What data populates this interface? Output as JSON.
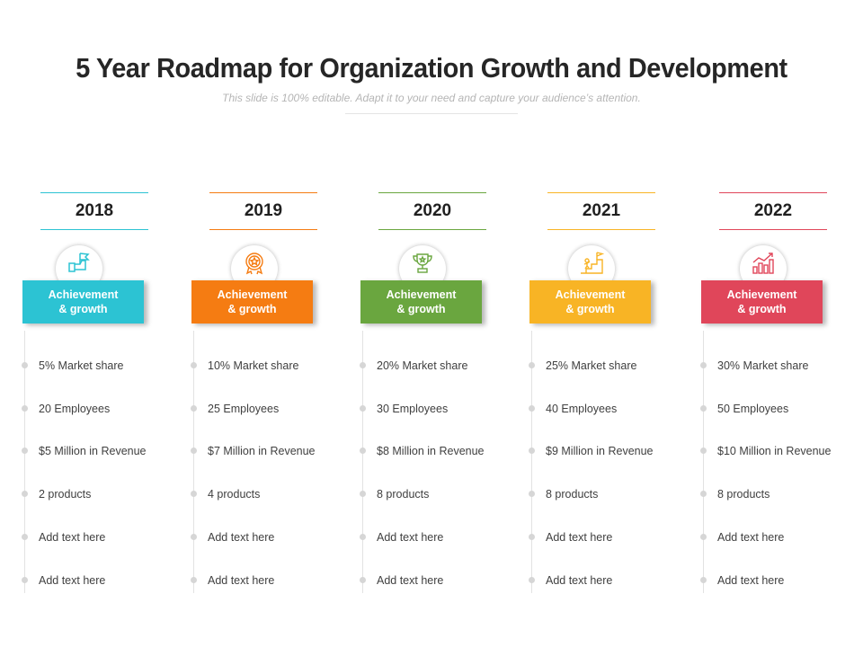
{
  "header": {
    "title": "5 Year Roadmap for Organization Growth and Development",
    "subtitle": "This slide is 100% editable. Adapt it to your need and capture your audience’s attention."
  },
  "columns": [
    {
      "year": "2018",
      "label": "Achievement\n& growth",
      "color": "#2cc3d3",
      "icon": "hand-flag-icon",
      "items": [
        "5% Market share",
        "20 Employees",
        "$5 Million in Revenue",
        "2 products",
        "Add text here",
        "Add text here"
      ]
    },
    {
      "year": "2019",
      "label": "Achievement\n& growth",
      "color": "#f57c12",
      "icon": "award-medal-icon",
      "items": [
        "10% Market share",
        "25 Employees",
        "$7 Million in Revenue",
        "4 products",
        "Add text here",
        "Add text here"
      ]
    },
    {
      "year": "2020",
      "label": "Achievement\n& growth",
      "color": "#6aa63f",
      "icon": "trophy-icon",
      "items": [
        "20% Market share",
        "30 Employees",
        "$8 Million in Revenue",
        "8 products",
        "Add text here",
        "Add text here"
      ]
    },
    {
      "year": "2021",
      "label": "Achievement\n& growth",
      "color": "#f8b425",
      "icon": "stairs-flag-icon",
      "items": [
        "25% Market share",
        "40 Employees",
        "$9 Million in Revenue",
        "8 products",
        "Add text here",
        "Add text here"
      ]
    },
    {
      "year": "2022",
      "label": "Achievement\n& growth",
      "color": "#e0465a",
      "icon": "growth-chart-icon",
      "items": [
        "30% Market share",
        "50 Employees",
        "$10 Million in Revenue",
        "8 products",
        "Add text here",
        "Add text here"
      ]
    }
  ]
}
